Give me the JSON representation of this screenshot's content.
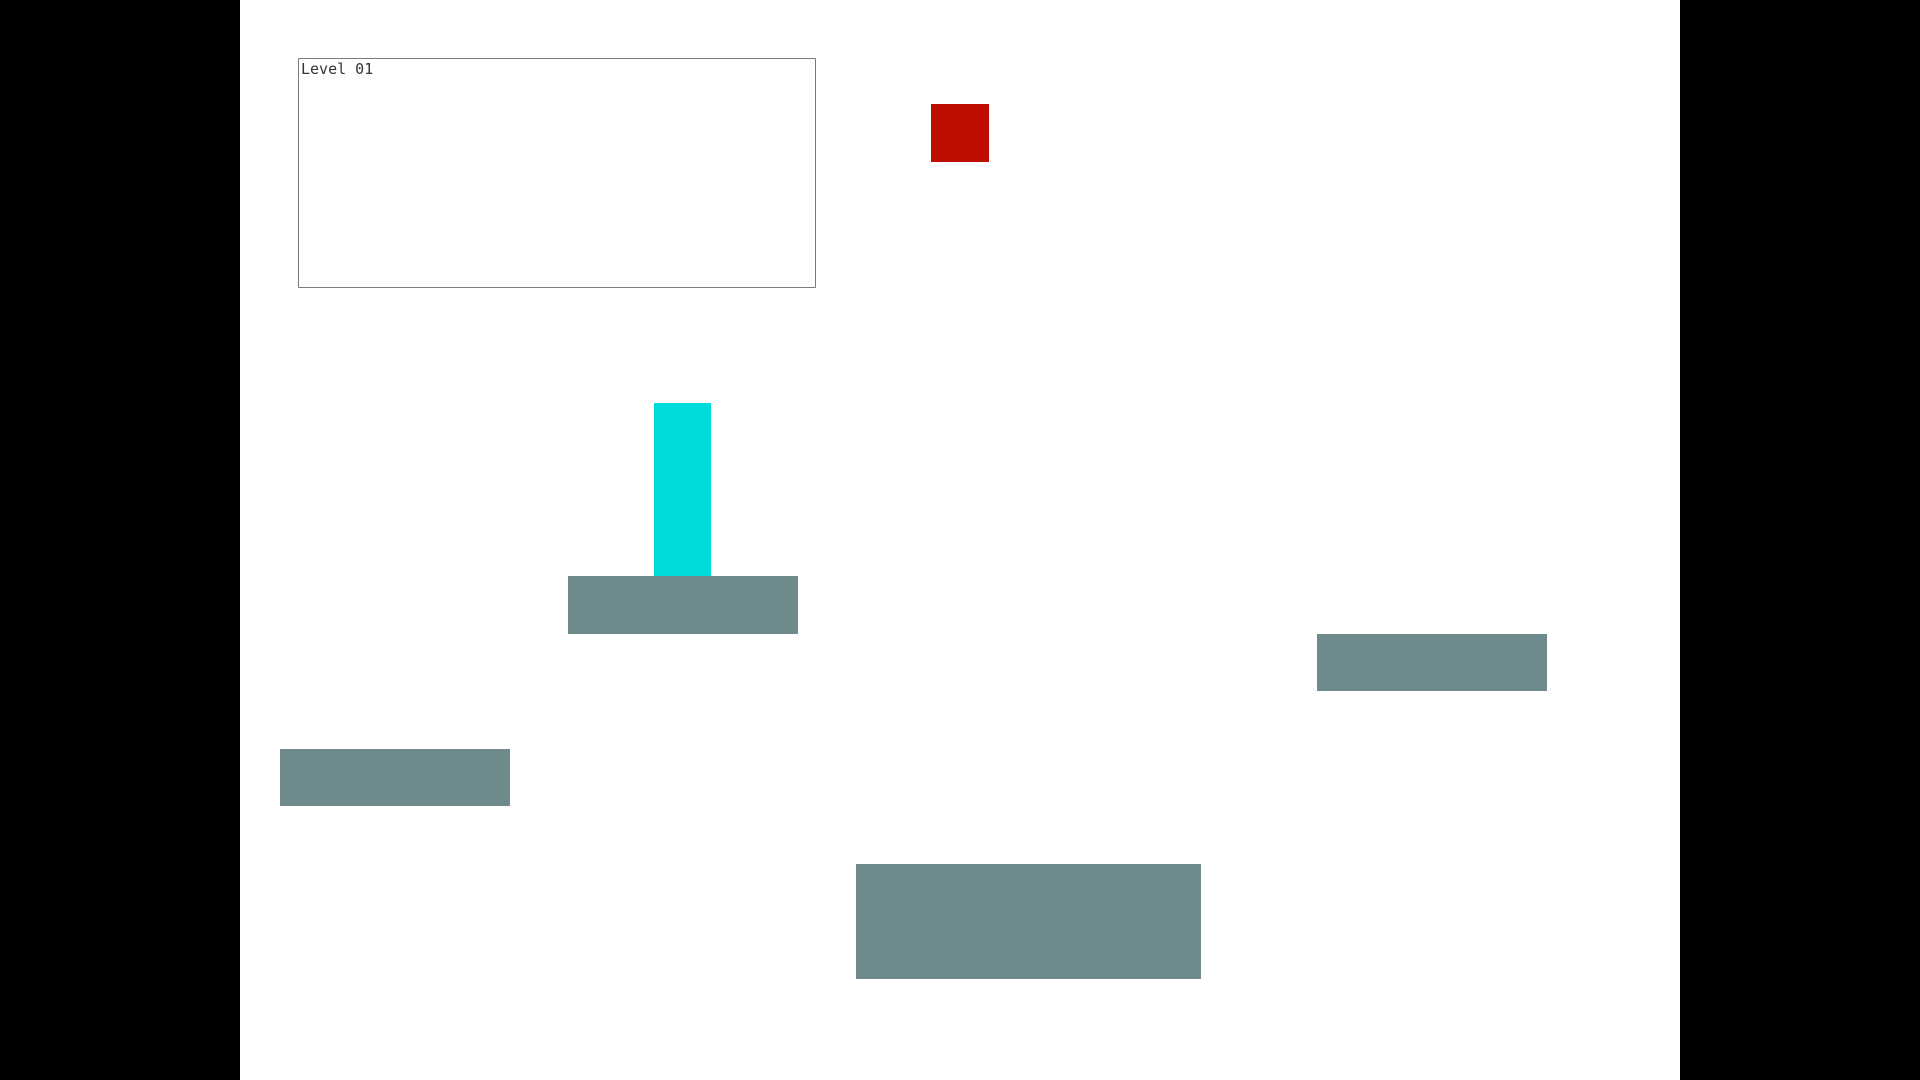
{
  "level": {
    "label": "Level 01"
  },
  "colors": {
    "background": "#ffffff",
    "letterbox": "#000000",
    "goal": "#bd0e00",
    "player": "#00dcdc",
    "platform": "#6e8a8c"
  },
  "entities": {
    "goal": {
      "kind": "goal-block",
      "icon": "red-square"
    },
    "player": {
      "kind": "player-block",
      "icon": "cyan-rectangle"
    },
    "platforms": [
      {
        "id": "p1",
        "kind": "platform"
      },
      {
        "id": "p2",
        "kind": "platform"
      },
      {
        "id": "p3",
        "kind": "platform"
      },
      {
        "id": "p4",
        "kind": "platform"
      }
    ]
  }
}
